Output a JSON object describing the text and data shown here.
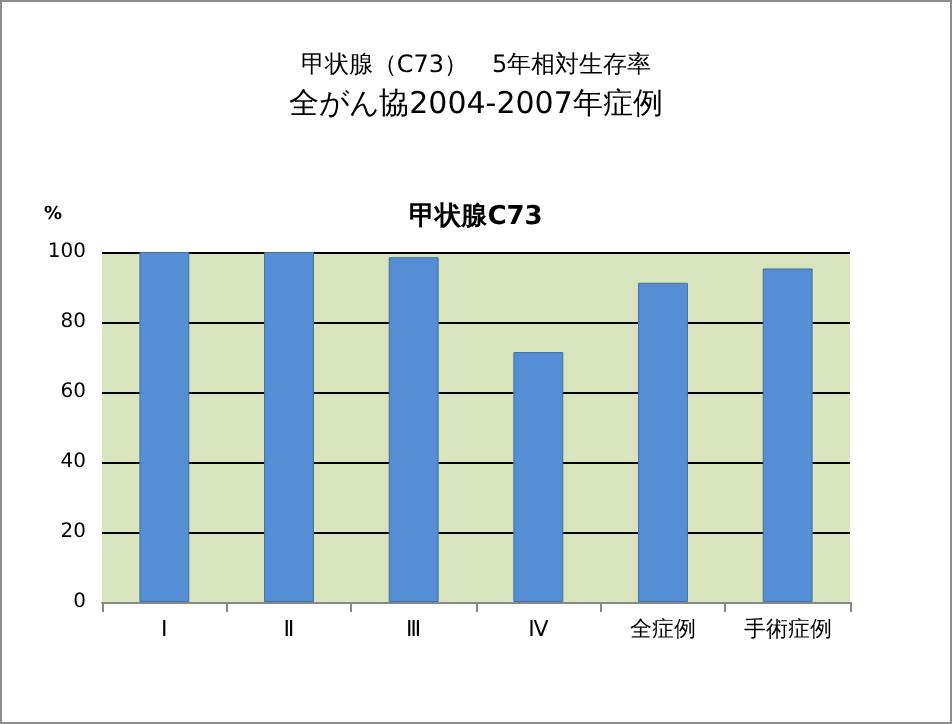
{
  "chart_data": {
    "type": "bar",
    "title": "甲状腺（C73）　5年相対生存率",
    "subtitle": "全がん協2004-2007年症例",
    "annotations": [
      "甲状腺C73"
    ],
    "ylabel": "%",
    "categories": [
      "Ⅰ",
      "Ⅱ",
      "Ⅲ",
      "Ⅳ",
      "全症例",
      "手術症例"
    ],
    "values": [
      100,
      100,
      98.5,
      71.4,
      91.2,
      95.3
    ],
    "color": "#558ed5",
    "ylim": [
      0,
      100
    ],
    "yticks": [
      0,
      20,
      40,
      60,
      80,
      100
    ],
    "grid": "y"
  }
}
